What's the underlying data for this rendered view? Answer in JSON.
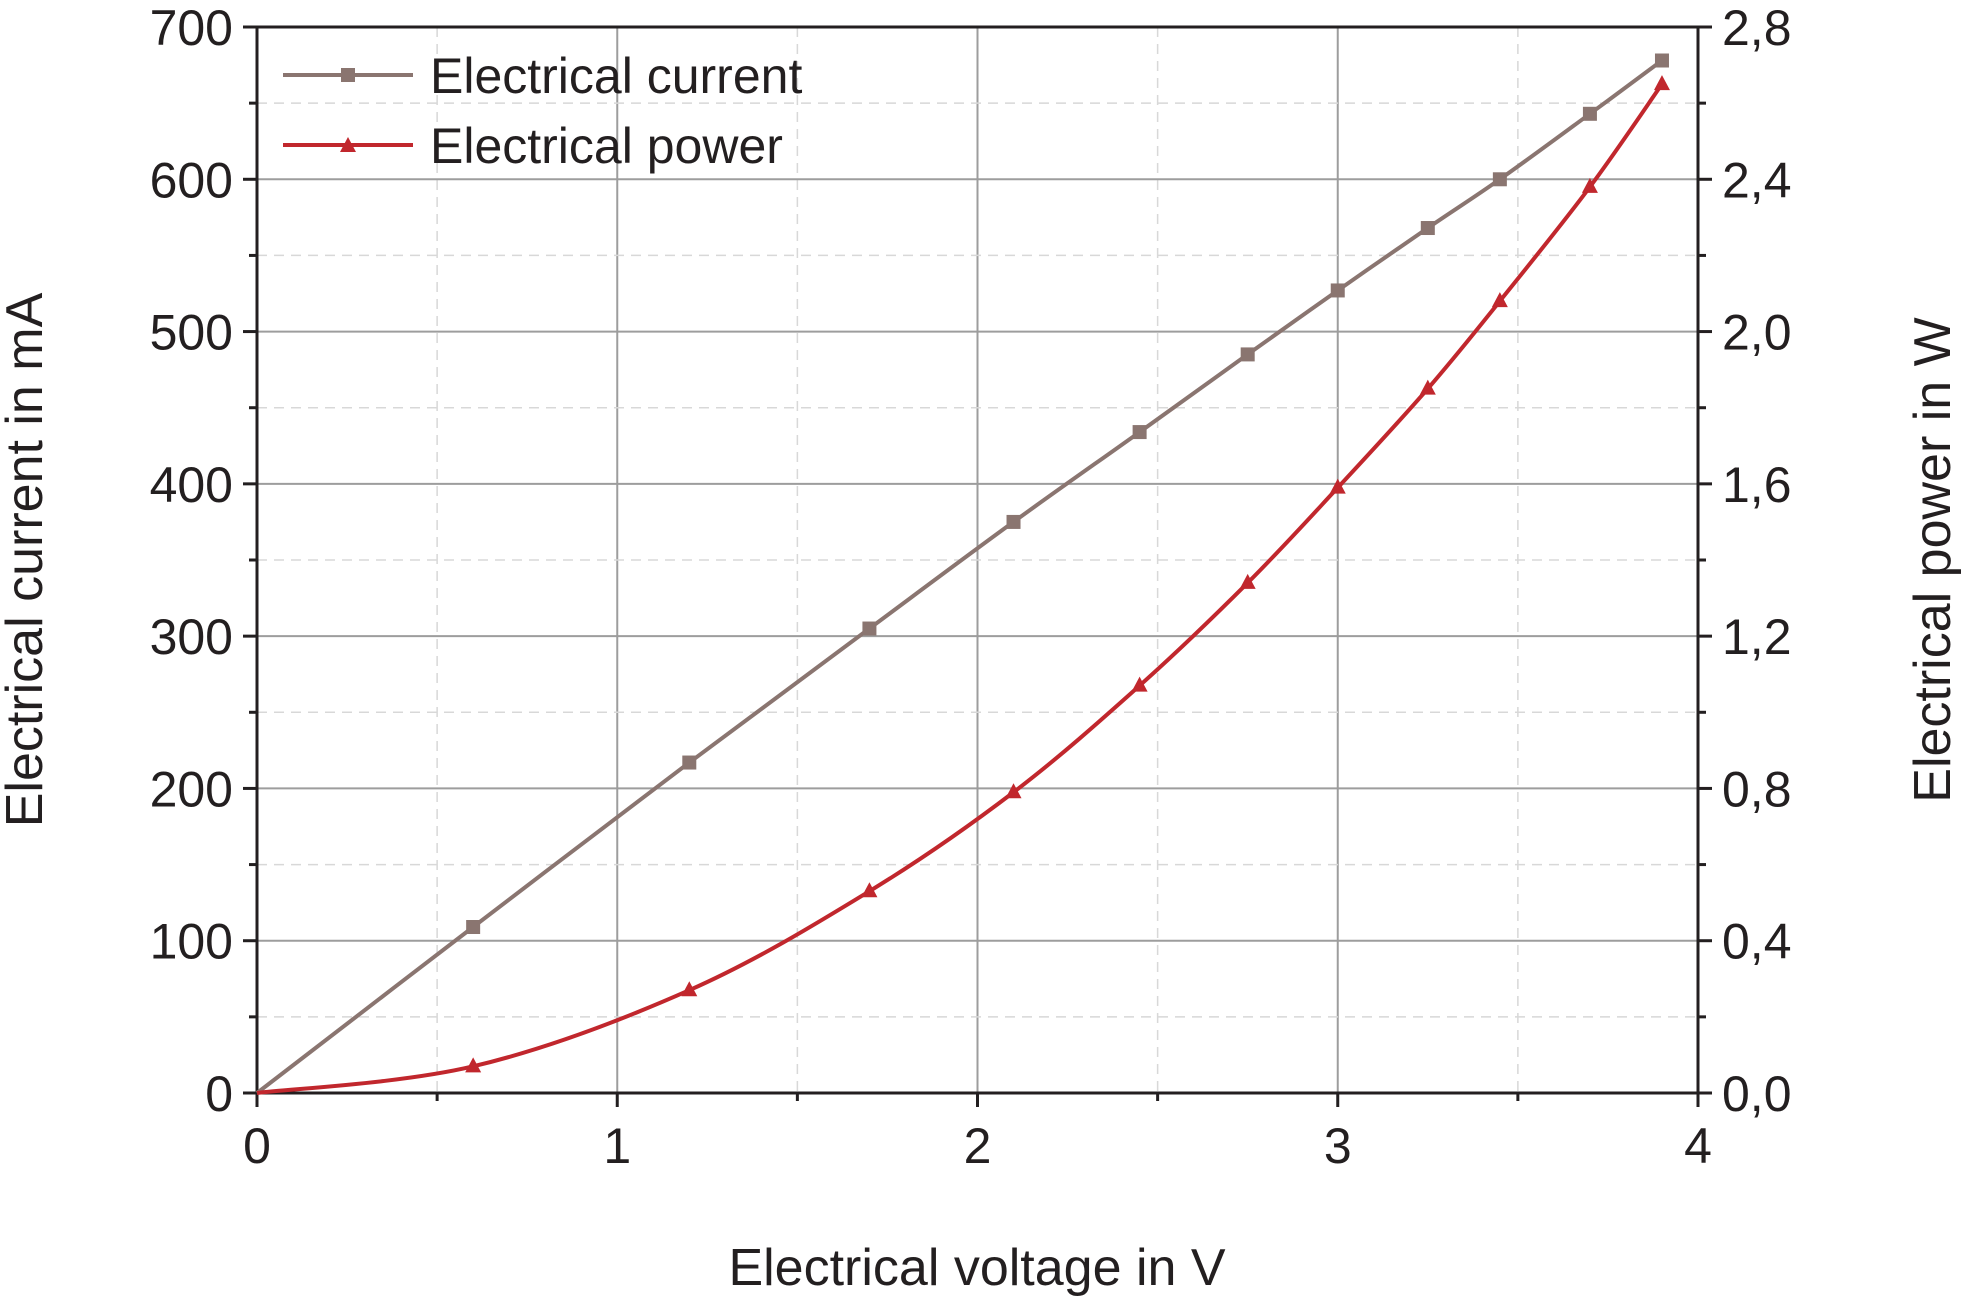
{
  "chart_data": {
    "type": "line",
    "xlabel": "Electrical voltage in V",
    "ylabel": "Electrical current in mA",
    "y2label": "Electrical power in W",
    "xlim": [
      0,
      4
    ],
    "ylim": [
      0,
      700
    ],
    "y2lim": [
      0,
      2.8
    ],
    "xticks": [
      "0",
      "1",
      "2",
      "3",
      "4"
    ],
    "yticks": [
      "0",
      "100",
      "200",
      "300",
      "400",
      "500",
      "600",
      "700"
    ],
    "y2ticks": [
      "0,0",
      "0,4",
      "0,8",
      "1,2",
      "1,6",
      "2,0",
      "2,4",
      "2,8"
    ],
    "grid": true,
    "legend_position": "top-left",
    "series": [
      {
        "name": "Electrical current",
        "axis": "left",
        "marker": "square",
        "color": "#8a7570",
        "x": [
          0,
          0.6,
          1.2,
          1.7,
          2.1,
          2.45,
          2.75,
          3.0,
          3.25,
          3.45,
          3.7,
          3.9
        ],
        "y": [
          0,
          109,
          217,
          305,
          375,
          434,
          485,
          527,
          568,
          600,
          643,
          678
        ]
      },
      {
        "name": "Electrical power",
        "axis": "right",
        "marker": "triangle",
        "color": "#c1272d",
        "x": [
          0,
          0.6,
          1.2,
          1.7,
          2.1,
          2.45,
          2.75,
          3.0,
          3.25,
          3.45,
          3.7,
          3.9
        ],
        "y": [
          0,
          0.07,
          0.27,
          0.53,
          0.79,
          1.07,
          1.34,
          1.59,
          1.85,
          2.08,
          2.38,
          2.65
        ]
      }
    ]
  }
}
